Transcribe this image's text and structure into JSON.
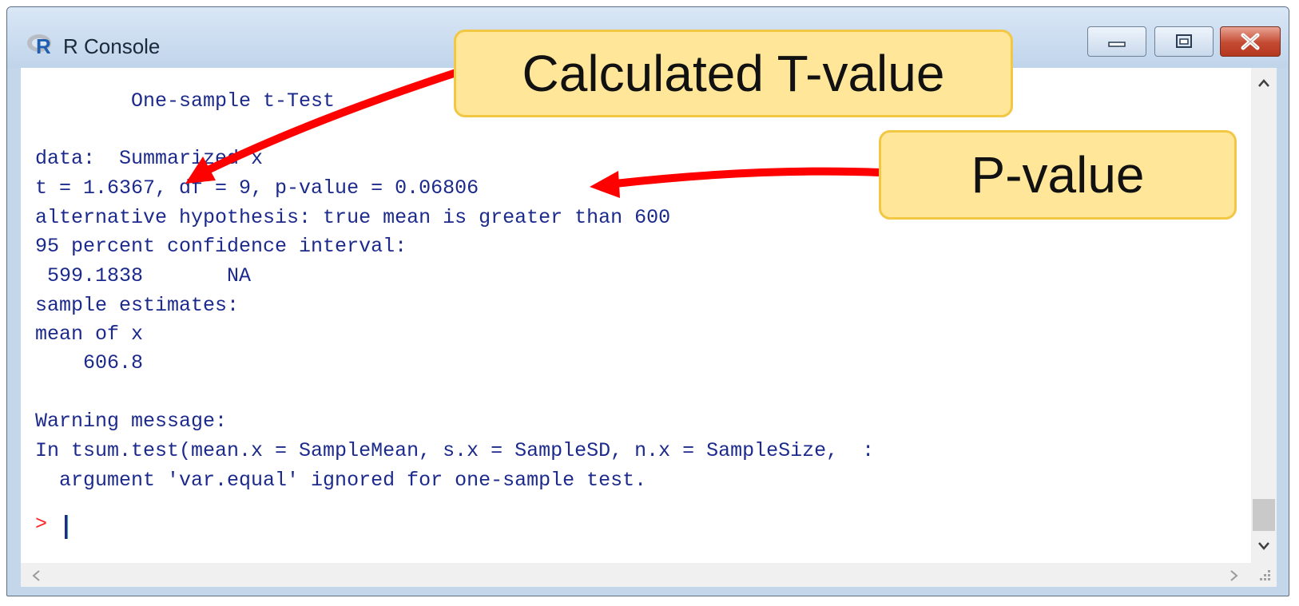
{
  "window": {
    "title": "R Console"
  },
  "console": {
    "lines": [
      "        One-sample t-Test",
      "",
      "data:  Summarized x",
      "t = 1.6367, df = 9, p-value = 0.06806",
      "alternative hypothesis: true mean is greater than 600",
      "95 percent confidence interval:",
      " 599.1838       NA",
      "sample estimates:",
      "mean of x",
      "    606.8",
      "",
      "",
      "Warning message:",
      "In tsum.test(mean.x = SampleMean, s.x = SampleSD, n.x = SampleSize,  :",
      "  argument 'var.equal' ignored for one-sample test."
    ],
    "prompt": ">"
  },
  "annotations": {
    "t_value_label": "Calculated T-value",
    "p_value_label": "P-value"
  },
  "colors": {
    "console_text": "#1c2a8c",
    "prompt": "#ff2222",
    "callout_fill": "#ffe699",
    "callout_border": "#f2c744",
    "arrow": "#ff0000"
  },
  "icons": {
    "app": "r-logo-icon",
    "minimize": "minimize-icon",
    "maximize": "maximize-icon",
    "close": "close-icon",
    "scroll_up": "chevron-up-icon",
    "scroll_down": "chevron-down-icon",
    "scroll_left": "chevron-left-icon",
    "scroll_right": "chevron-right-icon",
    "resize": "resize-grip-icon"
  }
}
